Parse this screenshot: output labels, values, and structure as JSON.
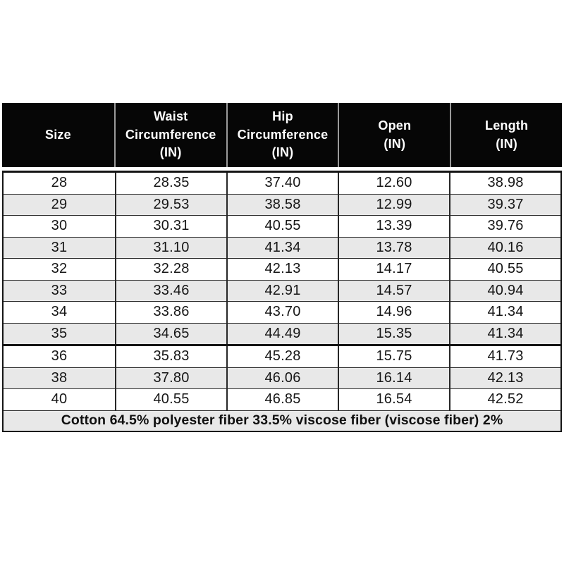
{
  "style": {
    "page_bg": "#ffffff",
    "header_bg": "#060606",
    "header_text_color": "#ffffff",
    "header_divider_color": "#9a9a9a",
    "alt_row_bg": "#e8e8e8",
    "grid_line_color": "#272727",
    "outer_border_color": "#141414",
    "body_text_color": "#161616"
  },
  "chart_data": {
    "type": "table",
    "title": "",
    "columns": [
      "Size",
      "Waist Circumference (IN)",
      "Hip Circumference (IN)",
      "Open (IN)",
      "Length (IN)"
    ],
    "column_labels_wrapped": [
      "Size",
      "Waist\nCircumference\n(IN)",
      "Hip\nCircumference\n(IN)",
      "Open\n(IN)",
      "Length\n(IN)"
    ],
    "rows": [
      [
        "28",
        "28.35",
        "37.40",
        "12.60",
        "38.98"
      ],
      [
        "29",
        "29.53",
        "38.58",
        "12.99",
        "39.37"
      ],
      [
        "30",
        "30.31",
        "40.55",
        "13.39",
        "39.76"
      ],
      [
        "31",
        "31.10",
        "41.34",
        "13.78",
        "40.16"
      ],
      [
        "32",
        "32.28",
        "42.13",
        "14.17",
        "40.55"
      ],
      [
        "33",
        "33.46",
        "42.91",
        "14.57",
        "40.94"
      ],
      [
        "34",
        "33.86",
        "43.70",
        "14.96",
        "41.34"
      ],
      [
        "35",
        "34.65",
        "44.49",
        "15.35",
        "41.34"
      ],
      [
        "36",
        "35.83",
        "45.28",
        "15.75",
        "41.73"
      ],
      [
        "38",
        "37.80",
        "46.06",
        "16.14",
        "42.13"
      ],
      [
        "40",
        "40.55",
        "46.85",
        "16.54",
        "42.52"
      ]
    ],
    "group_break_row_index": 8,
    "footer_note": "Cotton 64.5% polyester fiber 33.5% viscose fiber (viscose fiber) 2%"
  }
}
